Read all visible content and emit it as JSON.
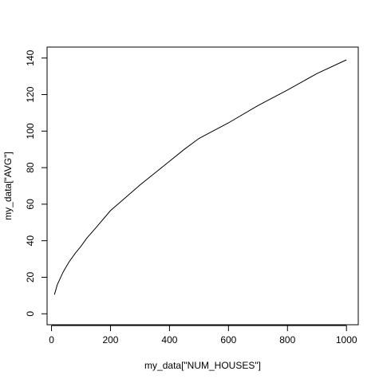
{
  "chart_data": {
    "type": "line",
    "title": "",
    "xlabel": "my_data[\"NUM_HOUSES\"]",
    "ylabel": "my_data[\"AVG\"]",
    "xlim": [
      -15,
      1040
    ],
    "ylim": [
      -6,
      146
    ],
    "xticks": [
      0,
      200,
      400,
      600,
      800,
      1000
    ],
    "yticks": [
      0,
      20,
      40,
      60,
      80,
      100,
      120,
      140
    ],
    "grid": false,
    "legend": "none",
    "line_color": "#000000",
    "series": [
      {
        "x": [
          10,
          20,
          40,
          60,
          80,
          100,
          120,
          150,
          200,
          250,
          300,
          350,
          400,
          450,
          500,
          600,
          700,
          800,
          900,
          1000
        ],
        "y": [
          10.5,
          16,
          23,
          28.5,
          33,
          37,
          41.5,
          47,
          56.5,
          63.5,
          70.5,
          77,
          83.5,
          90,
          96,
          104.5,
          114,
          122.5,
          131.5,
          139
        ]
      }
    ]
  }
}
